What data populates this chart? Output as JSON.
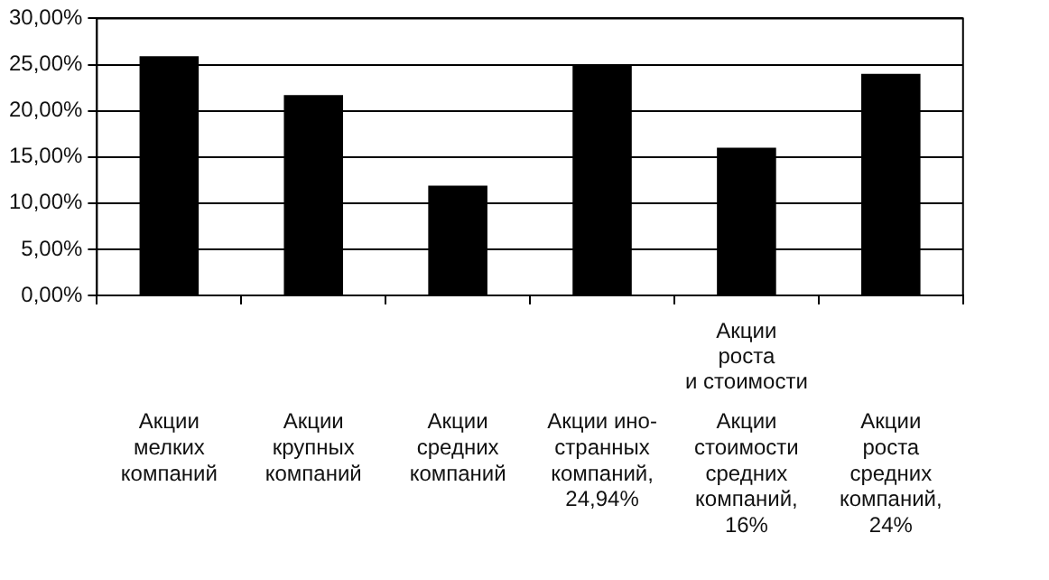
{
  "chart_data": {
    "type": "bar",
    "categories": [
      "Акции\nмелких\nкомпаний",
      "Акции\nкрупных\nкомпаний",
      "Акции\nсредних\nкомпаний",
      "Акции ино-\nстранных\nкомпаний,\n24,94%",
      "Акции\nстоимости\nсредних\nкомпаний,\n16%",
      "Акции\nроста\nсредних\nкомпаний,\n24%"
    ],
    "values": [
      25.9,
      21.7,
      11.9,
      24.94,
      16,
      24
    ],
    "color": "#000000",
    "ylim": [
      0,
      30
    ],
    "yticks": [
      {
        "value": 0,
        "label": "0,00%"
      },
      {
        "value": 5,
        "label": "5,00%"
      },
      {
        "value": 10,
        "label": "10,00%"
      },
      {
        "value": 15,
        "label": "15,00%"
      },
      {
        "value": 20,
        "label": "20,00%"
      },
      {
        "value": 25,
        "label": "25,00%"
      },
      {
        "value": 30,
        "label": "30,00%"
      }
    ],
    "grid": "y",
    "annotations": [
      "Акции\nроста\nи стоимости"
    ]
  }
}
